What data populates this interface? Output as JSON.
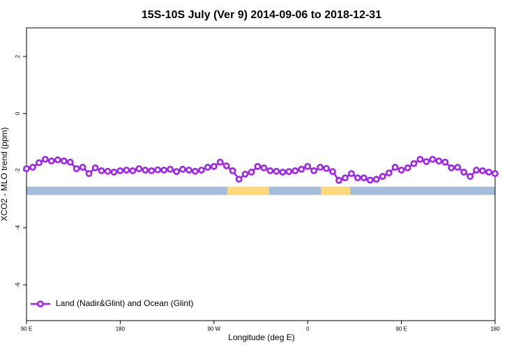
{
  "chart_data": {
    "type": "line",
    "title": "15S-10S July (Ver 9)   2014-09-06 to 2018-12-31",
    "x_label": "Longitude (deg E)",
    "y_label": "XCO2 - MLO trend (ppm)",
    "xlim": [
      90,
      540
    ],
    "ylim": [
      -7.25,
      3.0
    ],
    "xticks": [
      {
        "value": 90,
        "label": "90 E"
      },
      180,
      {
        "value": 270,
        "label": "90 W"
      },
      {
        "value": 360,
        "label": "0"
      },
      {
        "value": 450,
        "label": "90 E"
      },
      {
        "value": 540,
        "label": "180"
      }
    ],
    "yticks": [
      2,
      0,
      -2,
      -4,
      -6
    ],
    "legend": "bottom-left",
    "land_mask": {
      "ylim": [
        -2.85,
        -2.56
      ],
      "ocean_color": "#a4bddb",
      "land_color": "#ffd97a",
      "land": [
        [
          283,
          323
        ],
        [
          373,
          401
        ]
      ]
    },
    "x": [
      90,
      96,
      102,
      108,
      114,
      120,
      126,
      132,
      138,
      144,
      150,
      156,
      162,
      168,
      174,
      180,
      186,
      192,
      198,
      204,
      210,
      216,
      222,
      228,
      234,
      240,
      246,
      252,
      258,
      264,
      270,
      276,
      282,
      288,
      294,
      300,
      306,
      312,
      318,
      324,
      330,
      336,
      342,
      348,
      354,
      360,
      366,
      372,
      378,
      384,
      390,
      396,
      402,
      408,
      414,
      420,
      426,
      432,
      438,
      444,
      450,
      456,
      462,
      468,
      474,
      480,
      486,
      492,
      498,
      504,
      510,
      516,
      522,
      528,
      534,
      540
    ],
    "series": [
      {
        "name": "Land (Nadir&Glint) and Ocean (Glint)",
        "color": "#a020f0",
        "values": [
          -1.93,
          -1.88,
          -1.72,
          -1.6,
          -1.66,
          -1.62,
          -1.66,
          -1.7,
          -1.93,
          -1.88,
          -2.1,
          -1.9,
          -2.0,
          -2.02,
          -2.05,
          -2.0,
          -1.98,
          -2.0,
          -1.93,
          -1.98,
          -2.0,
          -1.97,
          -1.98,
          -1.95,
          -2.03,
          -1.95,
          -1.98,
          -2.02,
          -1.98,
          -1.88,
          -1.85,
          -1.7,
          -1.83,
          -2.0,
          -2.3,
          -2.12,
          -2.05,
          -1.85,
          -1.9,
          -2.0,
          -2.02,
          -2.05,
          -2.03,
          -2.0,
          -1.95,
          -1.85,
          -2.0,
          -1.88,
          -1.92,
          -2.03,
          -2.34,
          -2.25,
          -2.1,
          -2.25,
          -2.25,
          -2.33,
          -2.3,
          -2.2,
          -2.08,
          -1.88,
          -1.98,
          -1.9,
          -1.75,
          -1.6,
          -1.68,
          -1.6,
          -1.66,
          -1.7,
          -1.9,
          -1.88,
          -2.05,
          -2.2,
          -1.98,
          -2.0,
          -2.05,
          -2.1
        ]
      }
    ]
  }
}
